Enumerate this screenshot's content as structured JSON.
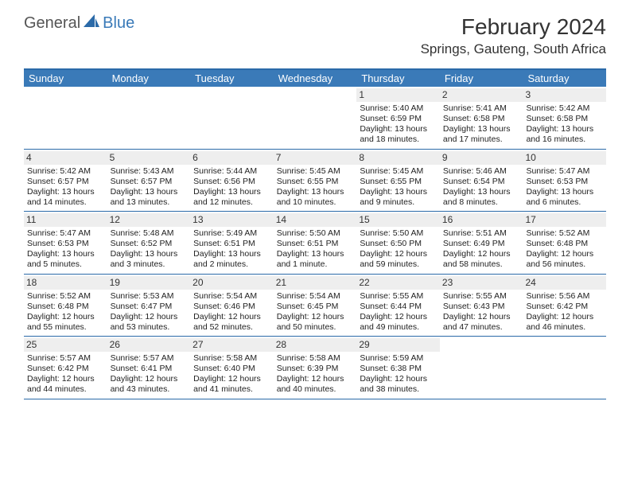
{
  "brand": {
    "part1": "General",
    "part2": "Blue"
  },
  "title": "February 2024",
  "location": "Springs, Gauteng, South Africa",
  "colors": {
    "header_bg": "#3a7ab8",
    "border": "#2b6aa8",
    "daynum_bg": "#eeeeee",
    "text": "#222222",
    "white": "#ffffff"
  },
  "day_headers": [
    "Sunday",
    "Monday",
    "Tuesday",
    "Wednesday",
    "Thursday",
    "Friday",
    "Saturday"
  ],
  "weeks": [
    [
      {
        "blank": true
      },
      {
        "blank": true
      },
      {
        "blank": true
      },
      {
        "blank": true
      },
      {
        "n": "1",
        "sr": "5:40 AM",
        "ss": "6:59 PM",
        "dl": "13 hours and 18 minutes."
      },
      {
        "n": "2",
        "sr": "5:41 AM",
        "ss": "6:58 PM",
        "dl": "13 hours and 17 minutes."
      },
      {
        "n": "3",
        "sr": "5:42 AM",
        "ss": "6:58 PM",
        "dl": "13 hours and 16 minutes."
      }
    ],
    [
      {
        "n": "4",
        "sr": "5:42 AM",
        "ss": "6:57 PM",
        "dl": "13 hours and 14 minutes."
      },
      {
        "n": "5",
        "sr": "5:43 AM",
        "ss": "6:57 PM",
        "dl": "13 hours and 13 minutes."
      },
      {
        "n": "6",
        "sr": "5:44 AM",
        "ss": "6:56 PM",
        "dl": "13 hours and 12 minutes."
      },
      {
        "n": "7",
        "sr": "5:45 AM",
        "ss": "6:55 PM",
        "dl": "13 hours and 10 minutes."
      },
      {
        "n": "8",
        "sr": "5:45 AM",
        "ss": "6:55 PM",
        "dl": "13 hours and 9 minutes."
      },
      {
        "n": "9",
        "sr": "5:46 AM",
        "ss": "6:54 PM",
        "dl": "13 hours and 8 minutes."
      },
      {
        "n": "10",
        "sr": "5:47 AM",
        "ss": "6:53 PM",
        "dl": "13 hours and 6 minutes."
      }
    ],
    [
      {
        "n": "11",
        "sr": "5:47 AM",
        "ss": "6:53 PM",
        "dl": "13 hours and 5 minutes."
      },
      {
        "n": "12",
        "sr": "5:48 AM",
        "ss": "6:52 PM",
        "dl": "13 hours and 3 minutes."
      },
      {
        "n": "13",
        "sr": "5:49 AM",
        "ss": "6:51 PM",
        "dl": "13 hours and 2 minutes."
      },
      {
        "n": "14",
        "sr": "5:50 AM",
        "ss": "6:51 PM",
        "dl": "13 hours and 1 minute."
      },
      {
        "n": "15",
        "sr": "5:50 AM",
        "ss": "6:50 PM",
        "dl": "12 hours and 59 minutes."
      },
      {
        "n": "16",
        "sr": "5:51 AM",
        "ss": "6:49 PM",
        "dl": "12 hours and 58 minutes."
      },
      {
        "n": "17",
        "sr": "5:52 AM",
        "ss": "6:48 PM",
        "dl": "12 hours and 56 minutes."
      }
    ],
    [
      {
        "n": "18",
        "sr": "5:52 AM",
        "ss": "6:48 PM",
        "dl": "12 hours and 55 minutes."
      },
      {
        "n": "19",
        "sr": "5:53 AM",
        "ss": "6:47 PM",
        "dl": "12 hours and 53 minutes."
      },
      {
        "n": "20",
        "sr": "5:54 AM",
        "ss": "6:46 PM",
        "dl": "12 hours and 52 minutes."
      },
      {
        "n": "21",
        "sr": "5:54 AM",
        "ss": "6:45 PM",
        "dl": "12 hours and 50 minutes."
      },
      {
        "n": "22",
        "sr": "5:55 AM",
        "ss": "6:44 PM",
        "dl": "12 hours and 49 minutes."
      },
      {
        "n": "23",
        "sr": "5:55 AM",
        "ss": "6:43 PM",
        "dl": "12 hours and 47 minutes."
      },
      {
        "n": "24",
        "sr": "5:56 AM",
        "ss": "6:42 PM",
        "dl": "12 hours and 46 minutes."
      }
    ],
    [
      {
        "n": "25",
        "sr": "5:57 AM",
        "ss": "6:42 PM",
        "dl": "12 hours and 44 minutes."
      },
      {
        "n": "26",
        "sr": "5:57 AM",
        "ss": "6:41 PM",
        "dl": "12 hours and 43 minutes."
      },
      {
        "n": "27",
        "sr": "5:58 AM",
        "ss": "6:40 PM",
        "dl": "12 hours and 41 minutes."
      },
      {
        "n": "28",
        "sr": "5:58 AM",
        "ss": "6:39 PM",
        "dl": "12 hours and 40 minutes."
      },
      {
        "n": "29",
        "sr": "5:59 AM",
        "ss": "6:38 PM",
        "dl": "12 hours and 38 minutes."
      },
      {
        "blank": true
      },
      {
        "blank": true
      }
    ]
  ],
  "labels": {
    "sunrise": "Sunrise: ",
    "sunset": "Sunset: ",
    "daylight": "Daylight: "
  }
}
